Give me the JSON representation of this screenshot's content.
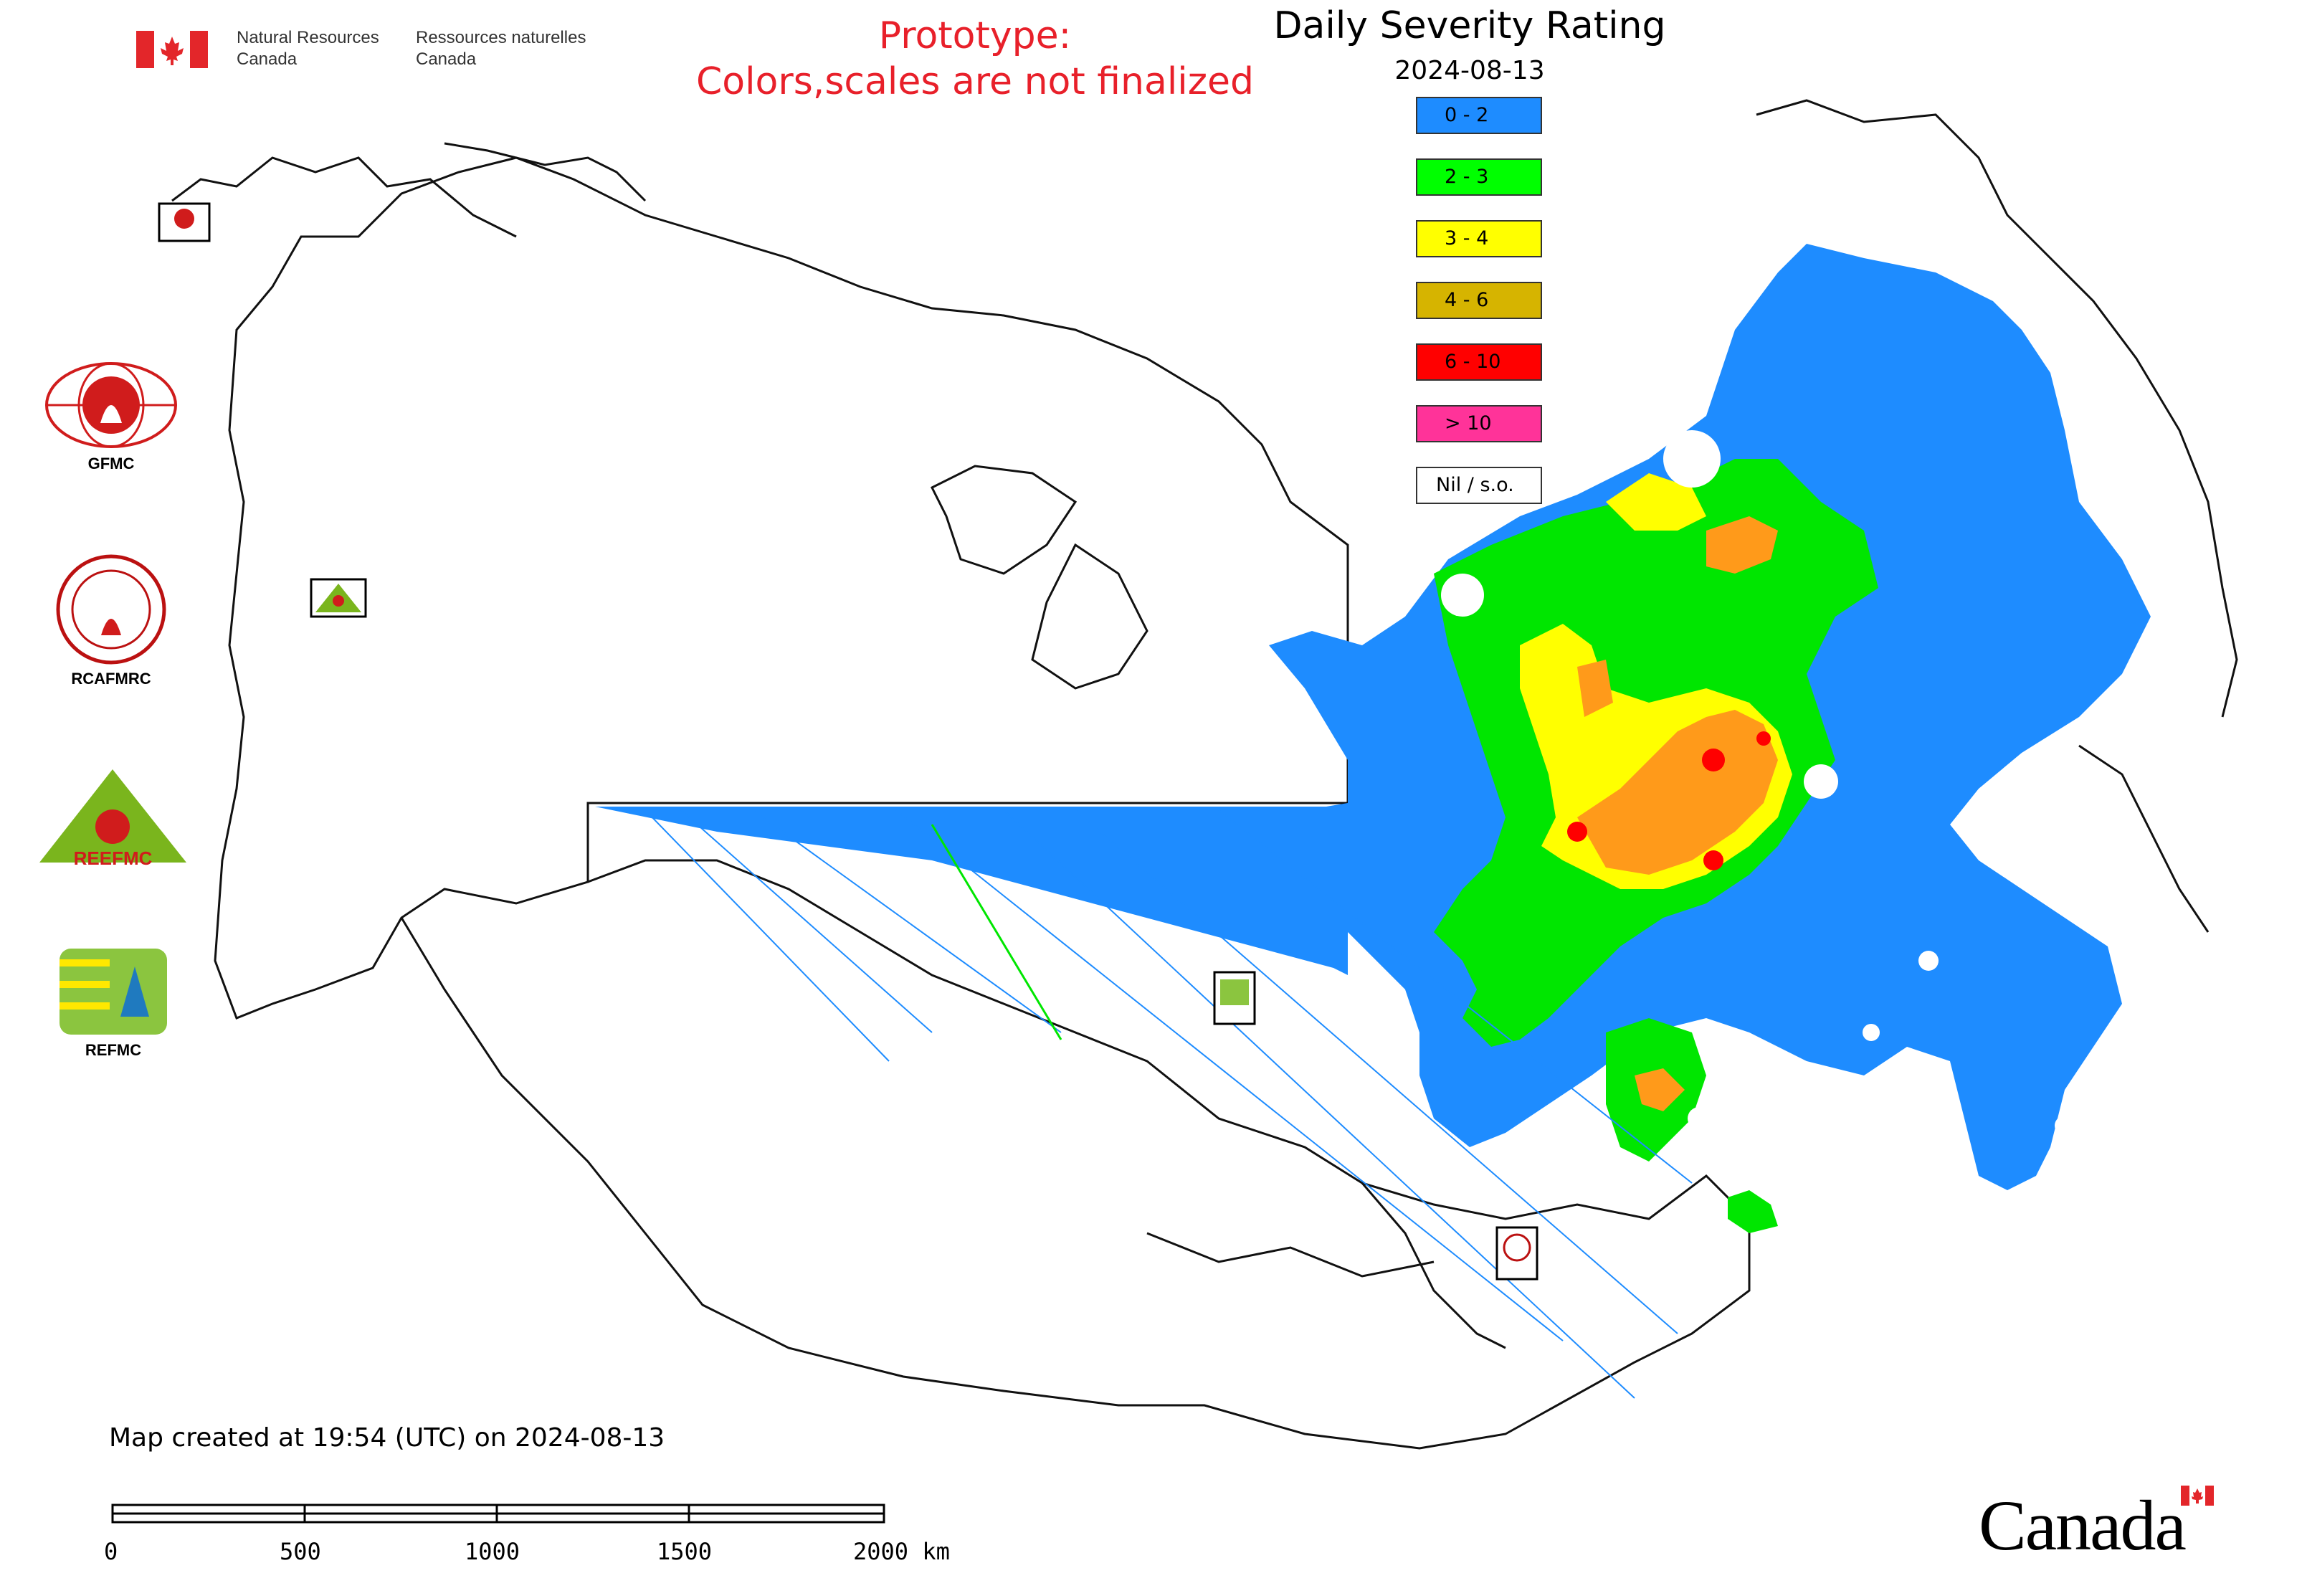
{
  "header": {
    "gov_en_line1": "Natural Resources",
    "gov_en_line2": "Canada",
    "gov_fr_line1": "Ressources naturelles",
    "gov_fr_line2": "Canada",
    "prototype_line1": "Prototype:",
    "prototype_line2": "Colors,scales are not finalized"
  },
  "map": {
    "title": "Daily Severity Rating",
    "date": "2024-08-13",
    "legend": [
      {
        "label": "0 - 2",
        "color": "#1e8cff"
      },
      {
        "label": "2 - 3",
        "color": "#00ff00"
      },
      {
        "label": "3 - 4",
        "color": "#ffff00"
      },
      {
        "label": "4 - 6",
        "color": "#d6b400"
      },
      {
        "label": "6 - 10",
        "color": "#ff0000"
      },
      {
        "label": "> 10",
        "color": "#ff3399"
      },
      {
        "label": "Nil / s.o.",
        "color": "#ffffff"
      }
    ]
  },
  "logos": {
    "gfmc": "GFMC",
    "rcafmrc": "RCAFMRC",
    "reefmc": "REEFMC",
    "refmc": "REFMC",
    "reefmc_mark": "REEFMC"
  },
  "footer": {
    "created": "Map created at 19:54 (UTC) on 2024-08-13",
    "scale_labels": [
      "0",
      "500",
      "1000",
      "1500",
      "2000 km"
    ],
    "canada_wordmark": "Canada"
  }
}
